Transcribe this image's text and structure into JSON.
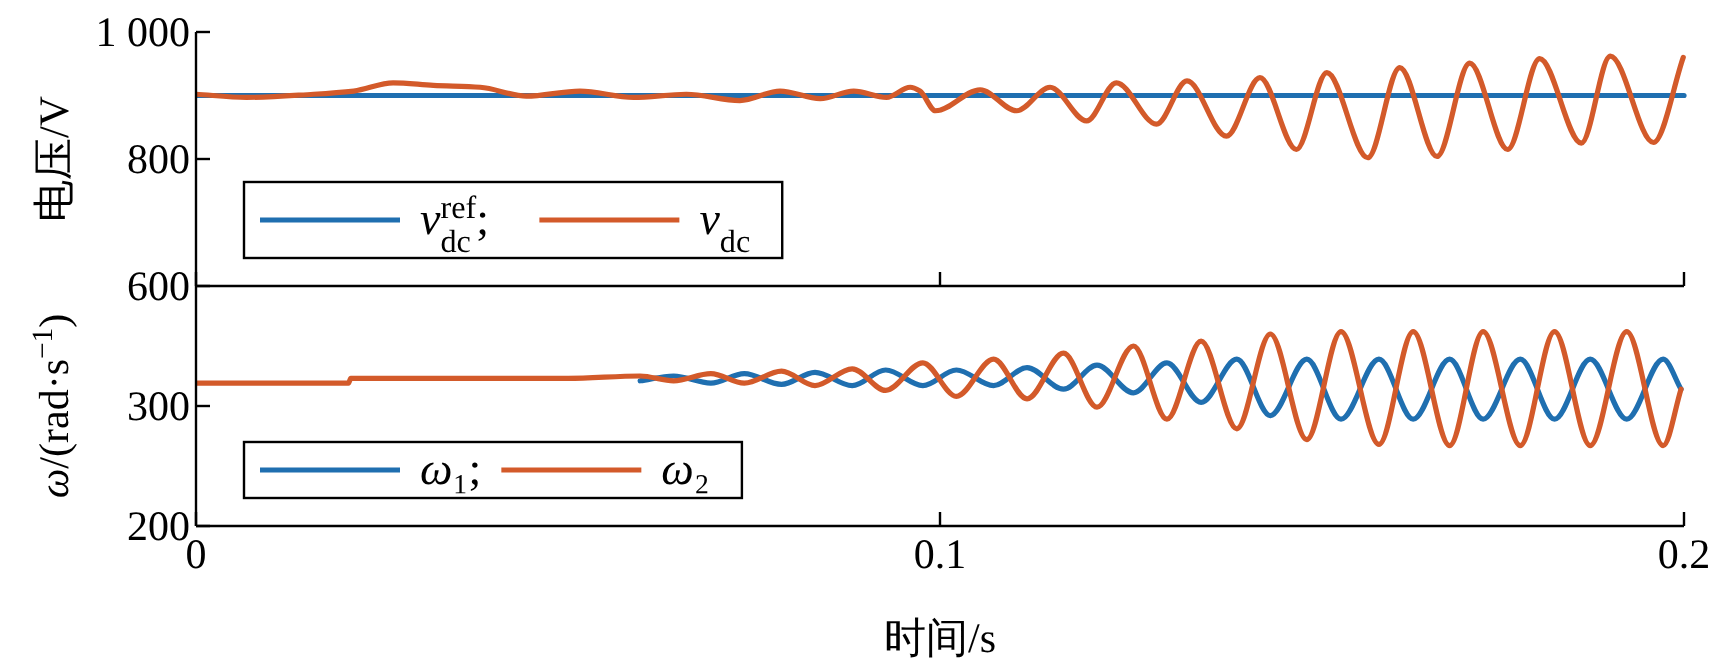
{
  "chart_data": [
    {
      "type": "line",
      "ylabel": "电压/V",
      "xlim": [
        0,
        0.2
      ],
      "xticks": [
        0,
        0.1,
        0.2
      ],
      "ylim": [
        600,
        1000
      ],
      "yticks": [
        600,
        800,
        {
          "value": 1000,
          "label": "1 000"
        }
      ],
      "tick_labels": "y",
      "legend": "bottom left",
      "series": [
        {
          "name": "v$_{dc}$$^{ref}$;",
          "color": "#1f6fb0",
          "x": [
            0,
            0.2
          ],
          "values": [
            900,
            900
          ]
        },
        {
          "name": "v$_{dc}$",
          "color": "#d35a2a",
          "x": [
            0,
            0.0068,
            0.0158,
            0.0212,
            0.0265,
            0.0319,
            0.0382,
            0.0444,
            0.0516,
            0.0588,
            0.0659,
            0.0731,
            0.0785,
            0.0839,
            0.0884,
            0.0928,
            0.096,
            0.0973,
            0.0994,
            0.1054,
            0.1103,
            0.1148,
            0.1197,
            0.1237,
            0.1291,
            0.1332,
            0.1385,
            0.143,
            0.1479,
            0.152,
            0.1575,
            0.1618,
            0.1668,
            0.1712,
            0.1763,
            0.1806,
            0.1862,
            0.1901,
            0.1959,
            0.1999
          ],
          "values": [
            902,
            897,
            902,
            907,
            920,
            916,
            913,
            899,
            907,
            897,
            902,
            892,
            907,
            895,
            907,
            897,
            913,
            907,
            876,
            909,
            876,
            913,
            860,
            920,
            855,
            923,
            836,
            928,
            815,
            936,
            802,
            944,
            804,
            951,
            815,
            958,
            825,
            962,
            826,
            960
          ]
        }
      ]
    },
    {
      "type": "line",
      "ylabel": "ω/(rad·s$^{−1}$)",
      "xlabel": "时间/s",
      "xlim": [
        0,
        0.2
      ],
      "xticks": [
        0,
        0.1,
        0.2
      ],
      "ylim": [
        200,
        400
      ],
      "yticks": [
        200,
        300
      ],
      "legend": "bottom left",
      "series": [
        {
          "name": "ω₁;",
          "color": "#1f6fb0",
          "x": [
            0.0597,
            0.0642,
            0.0692,
            0.0737,
            0.0787,
            0.0832,
            0.0882,
            0.0927,
            0.0977,
            0.1022,
            0.1072,
            0.1117,
            0.1166,
            0.1211,
            0.126,
            0.1305,
            0.1351,
            0.1399,
            0.1444,
            0.1493,
            0.1539,
            0.159,
            0.1636,
            0.1685,
            0.173,
            0.178,
            0.1826,
            0.1874,
            0.1923,
            0.1972,
            0.1996
          ],
          "values": [
            321,
            325,
            319,
            327,
            318,
            328,
            317,
            330,
            317,
            330,
            317,
            332,
            314,
            334,
            311,
            336,
            303,
            339,
            292,
            339,
            289,
            339,
            289,
            339,
            289,
            339,
            289,
            339,
            289,
            339,
            314
          ]
        },
        {
          "name": "ω₂",
          "color": "#d35a2a",
          "x": [
            0,
            0.0205,
            0.0208,
            0.05,
            0.0597,
            0.0642,
            0.0692,
            0.0737,
            0.0787,
            0.0832,
            0.0882,
            0.0927,
            0.0977,
            0.1022,
            0.1072,
            0.1117,
            0.1166,
            0.1211,
            0.126,
            0.1305,
            0.1351,
            0.1399,
            0.1444,
            0.1493,
            0.1539,
            0.159,
            0.1636,
            0.1685,
            0.173,
            0.178,
            0.1826,
            0.1874,
            0.1923,
            0.1972,
            0.1996
          ],
          "values": [
            319,
            319,
            323,
            323,
            325,
            321,
            327,
            319,
            329,
            317,
            331,
            313,
            336,
            308,
            339,
            306,
            344,
            299,
            350,
            289,
            354,
            281,
            360,
            272,
            362,
            268,
            362,
            267,
            362,
            267,
            362,
            267,
            362,
            267,
            314
          ]
        }
      ]
    }
  ]
}
